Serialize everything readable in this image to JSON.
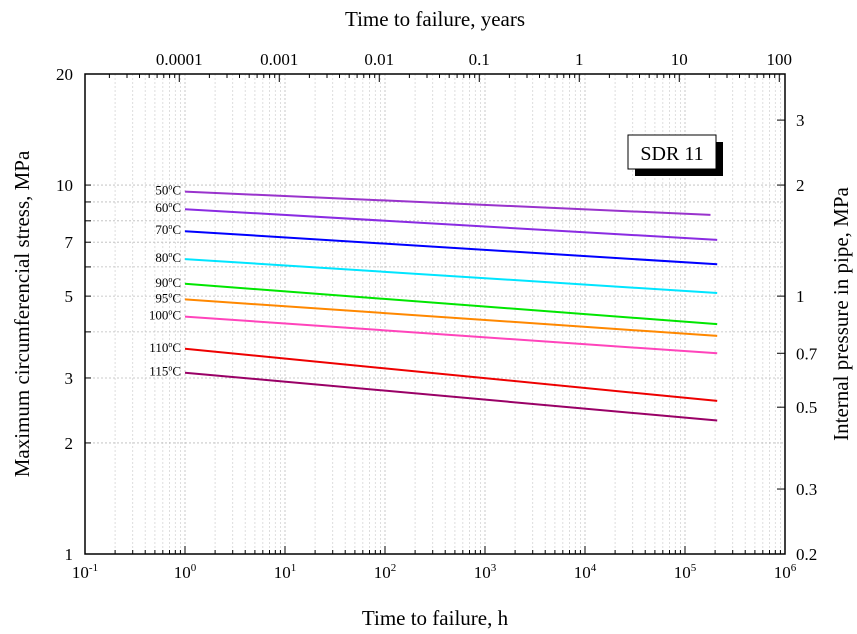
{
  "chart_data": {
    "type": "line",
    "title": "",
    "xlabel": "Time to failure, h",
    "ylabel": "Maximum circumferencial stress, MPa",
    "x2label": "Time to failure, years",
    "y2label": "Internal pressure in pipe, MPa",
    "xscale": "log",
    "yscale": "log",
    "xlim": [
      0.1,
      1000000
    ],
    "ylim": [
      1,
      20
    ],
    "grid": true,
    "x_ticks": [
      {
        "value": 0.1,
        "base": "10",
        "exp": "-1"
      },
      {
        "value": 1,
        "base": "10",
        "exp": "0"
      },
      {
        "value": 10,
        "base": "10",
        "exp": "1"
      },
      {
        "value": 100,
        "base": "10",
        "exp": "2"
      },
      {
        "value": 1000,
        "base": "10",
        "exp": "3"
      },
      {
        "value": 10000,
        "base": "10",
        "exp": "4"
      },
      {
        "value": 100000,
        "base": "10",
        "exp": "5"
      },
      {
        "value": 1000000,
        "base": "10",
        "exp": "6"
      }
    ],
    "y_ticks": [
      {
        "value": 1,
        "label": "1"
      },
      {
        "value": 2,
        "label": "2"
      },
      {
        "value": 3,
        "label": "3"
      },
      {
        "value": 5,
        "label": "5"
      },
      {
        "value": 7,
        "label": "7"
      },
      {
        "value": 10,
        "label": "10"
      },
      {
        "value": 20,
        "label": "20"
      }
    ],
    "x2_ticks": [
      {
        "years": 0.0001,
        "label": "0.0001"
      },
      {
        "years": 0.001,
        "label": "0.001"
      },
      {
        "years": 0.01,
        "label": "0.01"
      },
      {
        "years": 0.1,
        "label": "0.1"
      },
      {
        "years": 1,
        "label": "1"
      },
      {
        "years": 10,
        "label": "10"
      },
      {
        "years": 100,
        "label": "100"
      }
    ],
    "y2_ticks": [
      {
        "pressure": 0.2,
        "label": "0.2"
      },
      {
        "pressure": 0.3,
        "label": "0.3"
      },
      {
        "pressure": 0.5,
        "label": "0.5"
      },
      {
        "pressure": 0.7,
        "label": "0.7"
      },
      {
        "pressure": 1,
        "label": "1"
      },
      {
        "pressure": 2,
        "label": "2"
      },
      {
        "pressure": 3,
        "label": "3"
      }
    ],
    "annotation": "SDR 11",
    "series": [
      {
        "name": "50°C",
        "temp": "50",
        "color": "#9933cc",
        "x": [
          1,
          180000
        ],
        "y": [
          9.6,
          8.3
        ]
      },
      {
        "name": "60°C",
        "temp": "60",
        "color": "#8a2be2",
        "x": [
          1,
          210000
        ],
        "y": [
          8.6,
          7.1
        ]
      },
      {
        "name": "70°C",
        "temp": "70",
        "color": "#0000ff",
        "x": [
          1,
          210000
        ],
        "y": [
          7.5,
          6.1
        ]
      },
      {
        "name": "80°C",
        "temp": "80",
        "color": "#00e5ff",
        "x": [
          1,
          210000
        ],
        "y": [
          6.3,
          5.1
        ]
      },
      {
        "name": "90°C",
        "temp": "90",
        "color": "#00e600",
        "x": [
          1,
          210000
        ],
        "y": [
          5.4,
          4.2
        ]
      },
      {
        "name": "95°C",
        "temp": "95",
        "color": "#ff8800",
        "x": [
          1,
          210000
        ],
        "y": [
          4.9,
          3.9
        ]
      },
      {
        "name": "100°C",
        "temp": "100",
        "color": "#ff44bb",
        "x": [
          1,
          210000
        ],
        "y": [
          4.4,
          3.5
        ]
      },
      {
        "name": "110°C",
        "temp": "110",
        "color": "#ee0000",
        "x": [
          1,
          210000
        ],
        "y": [
          3.6,
          2.6
        ]
      },
      {
        "name": "115°C",
        "temp": "115",
        "color": "#990066",
        "x": [
          1,
          210000
        ],
        "y": [
          3.1,
          2.3
        ]
      }
    ]
  }
}
